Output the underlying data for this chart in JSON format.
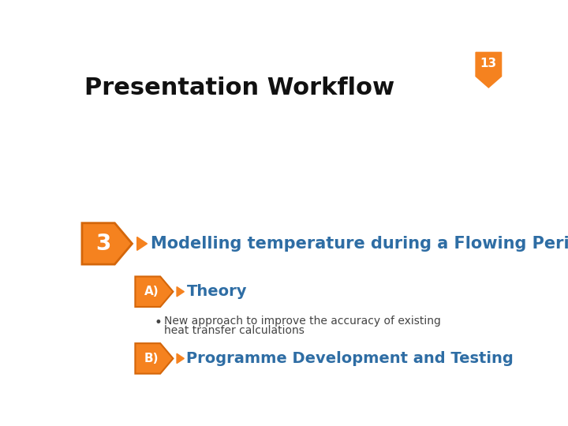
{
  "title": "Presentation Workflow",
  "title_fontsize": 22,
  "title_color": "#111111",
  "badge_number": "13",
  "badge_color": "#F5821F",
  "main_label": "3",
  "orange_color": "#F5821F",
  "blue_color": "#2E6DA4",
  "main_text": "Modelling temperature during a Flowing Period",
  "main_text_fontsize": 15,
  "sub_a_label": "A)",
  "sub_a_text": "Theory",
  "sub_a_fontsize": 14,
  "bullet_line1": "New approach to improve the accuracy of existing",
  "bullet_line2": "heat transfer calculations",
  "bullet_fontsize": 10,
  "bullet_color": "#444444",
  "sub_b_label": "B)",
  "sub_b_text": "Programme Development and Testing",
  "sub_b_fontsize": 14,
  "bg_color": "#ffffff",
  "white": "#ffffff"
}
